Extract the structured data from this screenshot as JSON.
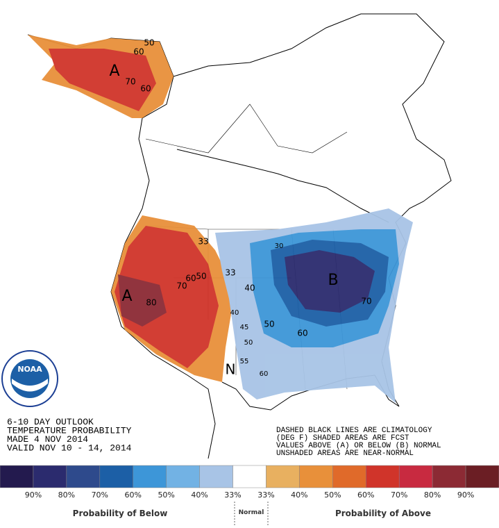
{
  "title_block": {
    "lines": [
      "6-10 DAY OUTLOOK",
      "TEMPERATURE PROBABILITY",
      "MADE  4 NOV 2014",
      "VALID  NOV 10 - 14, 2014"
    ]
  },
  "notes": [
    "DASHED BLACK LINES ARE CLIMATOLOGY",
    "(DEG F) SHADED AREAS ARE FCST",
    "VALUES ABOVE (A) OR BELOW (B) NORMAL",
    "UNSHADED AREAS ARE NEAR-NORMAL"
  ],
  "logo": "NOAA",
  "map_labels": [
    "A",
    "60",
    "50",
    "70",
    "60",
    "33",
    "33",
    "50",
    "60",
    "70",
    "A",
    "80",
    "40",
    "40",
    "45",
    "50",
    "50",
    "55",
    "N",
    "60",
    "60",
    "70",
    "B",
    "30"
  ],
  "legend": {
    "colors": [
      "#231a4e",
      "#2b2b6e",
      "#2e4a8c",
      "#1c5fa6",
      "#3d96d8",
      "#72b2e4",
      "#a8c4e6",
      "#ffffff",
      "#e8b060",
      "#e8903a",
      "#e06a2a",
      "#d0342a",
      "#c82a40",
      "#8c2a34",
      "#6b1e24"
    ],
    "labels": [
      "90%",
      "80%",
      "70%",
      "60%",
      "50%",
      "40%",
      "33%",
      "33%",
      "40%",
      "50%",
      "60%",
      "70%",
      "80%",
      "90%"
    ],
    "below_label": "Probability of Below",
    "normal_label": "Normal",
    "above_label": "Probability of Above"
  }
}
